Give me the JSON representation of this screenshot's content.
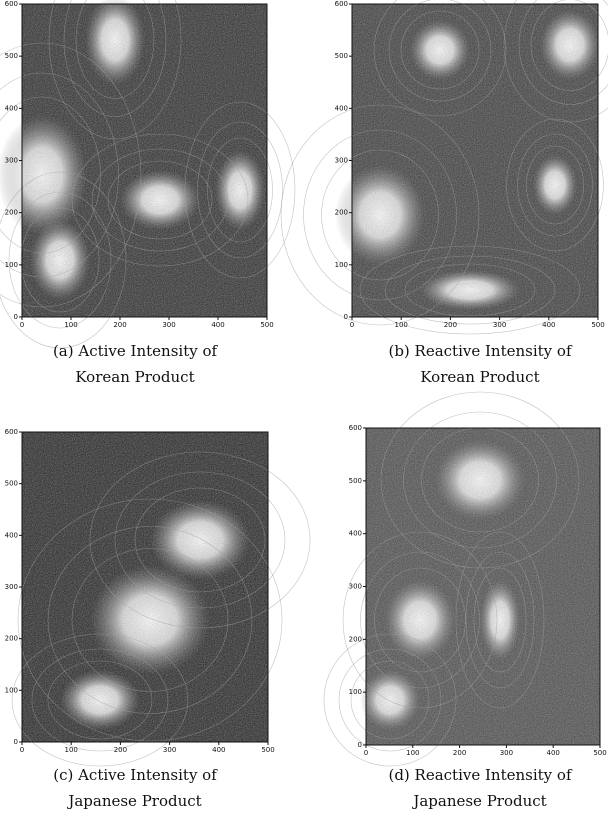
{
  "panels": [
    {
      "caption": [
        "(a)  Active Intensity of",
        "Korean Product"
      ],
      "xticks": [
        0,
        100,
        200,
        300,
        400,
        500
      ],
      "yticks": [
        0,
        100,
        200,
        300,
        400,
        500,
        600
      ]
    },
    {
      "caption": [
        "(b)  Reactive Intensity of",
        "Korean Product"
      ],
      "xticks": [
        0,
        100,
        200,
        300,
        400,
        500
      ],
      "yticks": [
        0,
        100,
        200,
        300,
        400,
        500,
        600
      ]
    },
    {
      "caption": [
        "(c)  Active Intensity of",
        "Japanese Product"
      ],
      "xticks": [
        0,
        100,
        200,
        300,
        400,
        500
      ],
      "yticks": [
        0,
        100,
        200,
        300,
        400,
        500,
        600
      ]
    },
    {
      "caption": [
        "(d)  Reactive Intensity of",
        "Japanese Product"
      ],
      "xticks": [
        0,
        100,
        200,
        300,
        400,
        500
      ],
      "yticks": [
        0,
        100,
        200,
        300,
        400,
        500,
        600
      ]
    }
  ]
}
